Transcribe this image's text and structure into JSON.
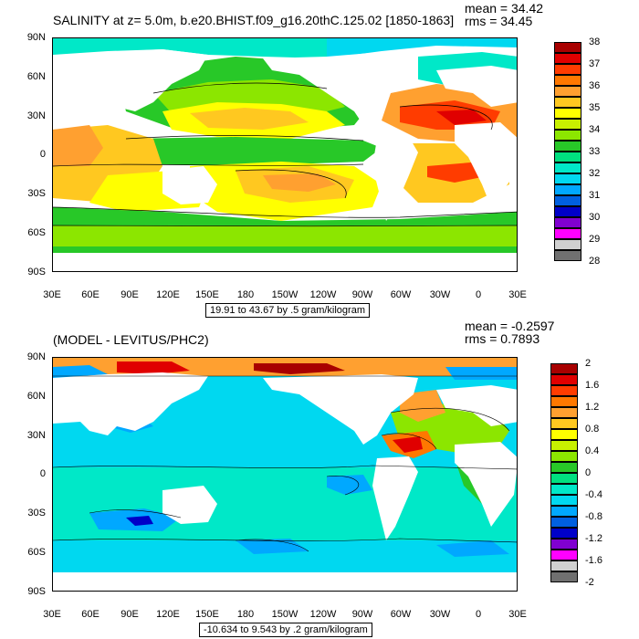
{
  "panels": [
    {
      "title": "SALINITY at z=   5.0m, b.e20.BHIST.f09_g16.20thC.125.02 [1850-1863]",
      "stats": [
        "mean = 34.42",
        "rms = 34.45"
      ],
      "lat_labels": [
        "90N",
        "60N",
        "30N",
        "0",
        "30S",
        "60S",
        "90S"
      ],
      "lon_labels": [
        "30E",
        "60E",
        "90E",
        "120E",
        "150E",
        "180",
        "150W",
        "120W",
        "90W",
        "60W",
        "30W",
        "0",
        "30E"
      ],
      "range_text": "19.91 to 43.67 by .5 gram/kilogram",
      "colorbar": {
        "labels": [
          "38",
          "37",
          "36",
          "35",
          "34",
          "33",
          "32",
          "31",
          "30",
          "29",
          "28"
        ],
        "colors": [
          "#a80000",
          "#e00000",
          "#ff3c00",
          "#ff7800",
          "#ffa030",
          "#ffc820",
          "#ffff00",
          "#c8f000",
          "#8ce600",
          "#28c828",
          "#00e080",
          "#00e8c8",
          "#00d8f0",
          "#00a8ff",
          "#0060e0",
          "#0000c8",
          "#8000d0",
          "#ff00ff",
          "#d0d0d0",
          "#707070"
        ]
      }
    },
    {
      "title": "(MODEL - LEVITUS/PHC2)",
      "stats": [
        "mean = -0.2597",
        "rms = 0.7893"
      ],
      "lat_labels": [
        "90N",
        "60N",
        "30N",
        "0",
        "30S",
        "60S",
        "90S"
      ],
      "lon_labels": [
        "30E",
        "60E",
        "90E",
        "120E",
        "150E",
        "180",
        "150W",
        "120W",
        "90W",
        "60W",
        "30W",
        "0",
        "30E"
      ],
      "range_text": "-10.634 to 9.543 by .2 gram/kilogram",
      "colorbar": {
        "labels": [
          "2",
          "1.6",
          "1.2",
          "0.8",
          "0.4",
          "0",
          "-0.4",
          "-0.8",
          "-1.2",
          "-1.6",
          "-2"
        ],
        "colors": [
          "#a80000",
          "#e00000",
          "#ff3c00",
          "#ff7800",
          "#ffa030",
          "#ffc820",
          "#ffff00",
          "#c8f000",
          "#8ce600",
          "#28c828",
          "#00e080",
          "#00e8c8",
          "#00d8f0",
          "#00a8ff",
          "#0060e0",
          "#0000c8",
          "#8000d0",
          "#ff00ff",
          "#d0d0d0",
          "#707070"
        ]
      }
    }
  ]
}
